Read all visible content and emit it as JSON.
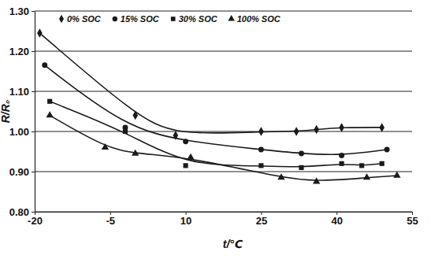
{
  "chart_data": {
    "type": "scatter",
    "x_label": "t/℃",
    "y_label": "R/R₀",
    "xlim": [
      -20,
      55
    ],
    "xticks": [
      -20,
      -5,
      10,
      25,
      40,
      55
    ],
    "ylim": [
      0.8,
      1.3
    ],
    "yticks": [
      {
        "value": 0.8,
        "label": "0.80"
      },
      {
        "value": 0.9,
        "label": "0.90"
      },
      {
        "value": 1.0,
        "label": "1.00"
      },
      {
        "value": 1.1,
        "label": "1.10"
      },
      {
        "value": 1.2,
        "label": "1.20"
      },
      {
        "value": 1.3,
        "label": "1.30"
      }
    ],
    "grid": true,
    "legend": "top",
    "series": [
      {
        "name": "0% SOC",
        "color": "#1a1a1a",
        "marker": "diamond",
        "line_style": "solid",
        "x": [
          -19,
          0,
          8,
          25,
          32,
          36,
          41,
          49
        ],
        "values": [
          1.245,
          1.04,
          0.99,
          1.0,
          1.0,
          1.005,
          1.01,
          1.01
        ]
      },
      {
        "name": "15% SOC",
        "color": "#1a1a1a",
        "marker": "circle",
        "line_style": "solid",
        "x": [
          -18,
          -2,
          10,
          25,
          33,
          41,
          50
        ],
        "values": [
          1.165,
          1.01,
          0.975,
          0.955,
          0.945,
          0.94,
          0.955
        ]
      },
      {
        "name": "30% SOC",
        "color": "#1a1a1a",
        "marker": "square",
        "line_style": "solid",
        "x": [
          -17,
          -2,
          10,
          25,
          33,
          41,
          45,
          49
        ],
        "values": [
          1.075,
          1.0,
          0.915,
          0.915,
          0.91,
          0.92,
          0.915,
          0.92
        ]
      },
      {
        "name": "100% SOC",
        "color": "#1a1a1a",
        "marker": "triangle",
        "line_style": "solid",
        "x": [
          -17,
          -6,
          0,
          11,
          29,
          36,
          46,
          52
        ],
        "values": [
          1.04,
          0.96,
          0.945,
          0.935,
          0.885,
          0.875,
          0.885,
          0.89
        ]
      }
    ]
  }
}
